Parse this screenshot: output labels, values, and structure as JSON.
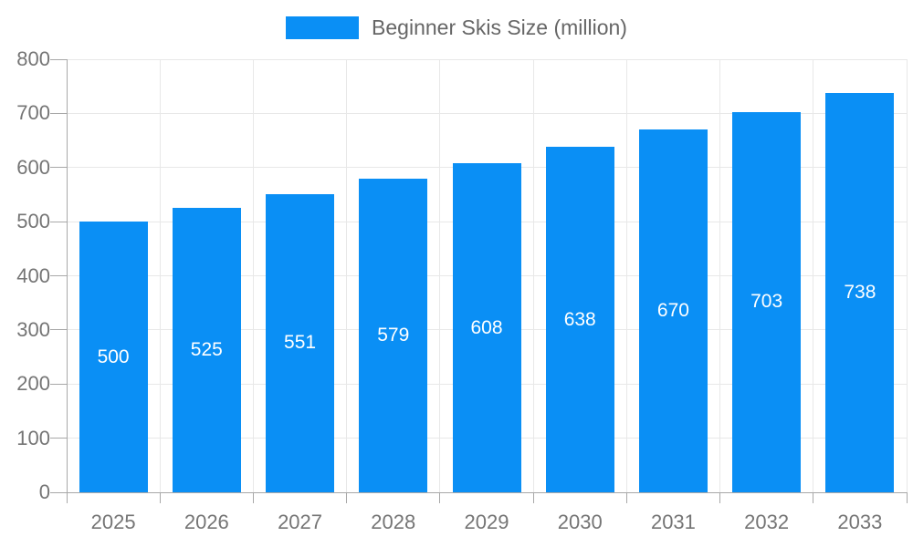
{
  "legend": {
    "label": "Beginner Skis Size (million)"
  },
  "chart_data": {
    "type": "bar",
    "title": "",
    "xlabel": "",
    "ylabel": "",
    "categories": [
      "2025",
      "2026",
      "2027",
      "2028",
      "2029",
      "2030",
      "2031",
      "2032",
      "2033"
    ],
    "values": [
      500,
      525,
      551,
      579,
      608,
      638,
      670,
      703,
      738
    ],
    "series_name": "Beginner Skis Size (million)",
    "value_labels_shown": true,
    "ylim": [
      0,
      800
    ],
    "ytick_interval": 100,
    "yticks": [
      "0",
      "100",
      "200",
      "300",
      "400",
      "500",
      "600",
      "700",
      "800"
    ],
    "grid": true,
    "legend_position": "top-center",
    "colors": {
      "bar": "#0a8ff5",
      "value_label": "#ffffff",
      "grid": "#e8e8e8",
      "axis_line": "#a8a8a8",
      "axis_label": "#757575",
      "legend_text": "#666666"
    }
  }
}
